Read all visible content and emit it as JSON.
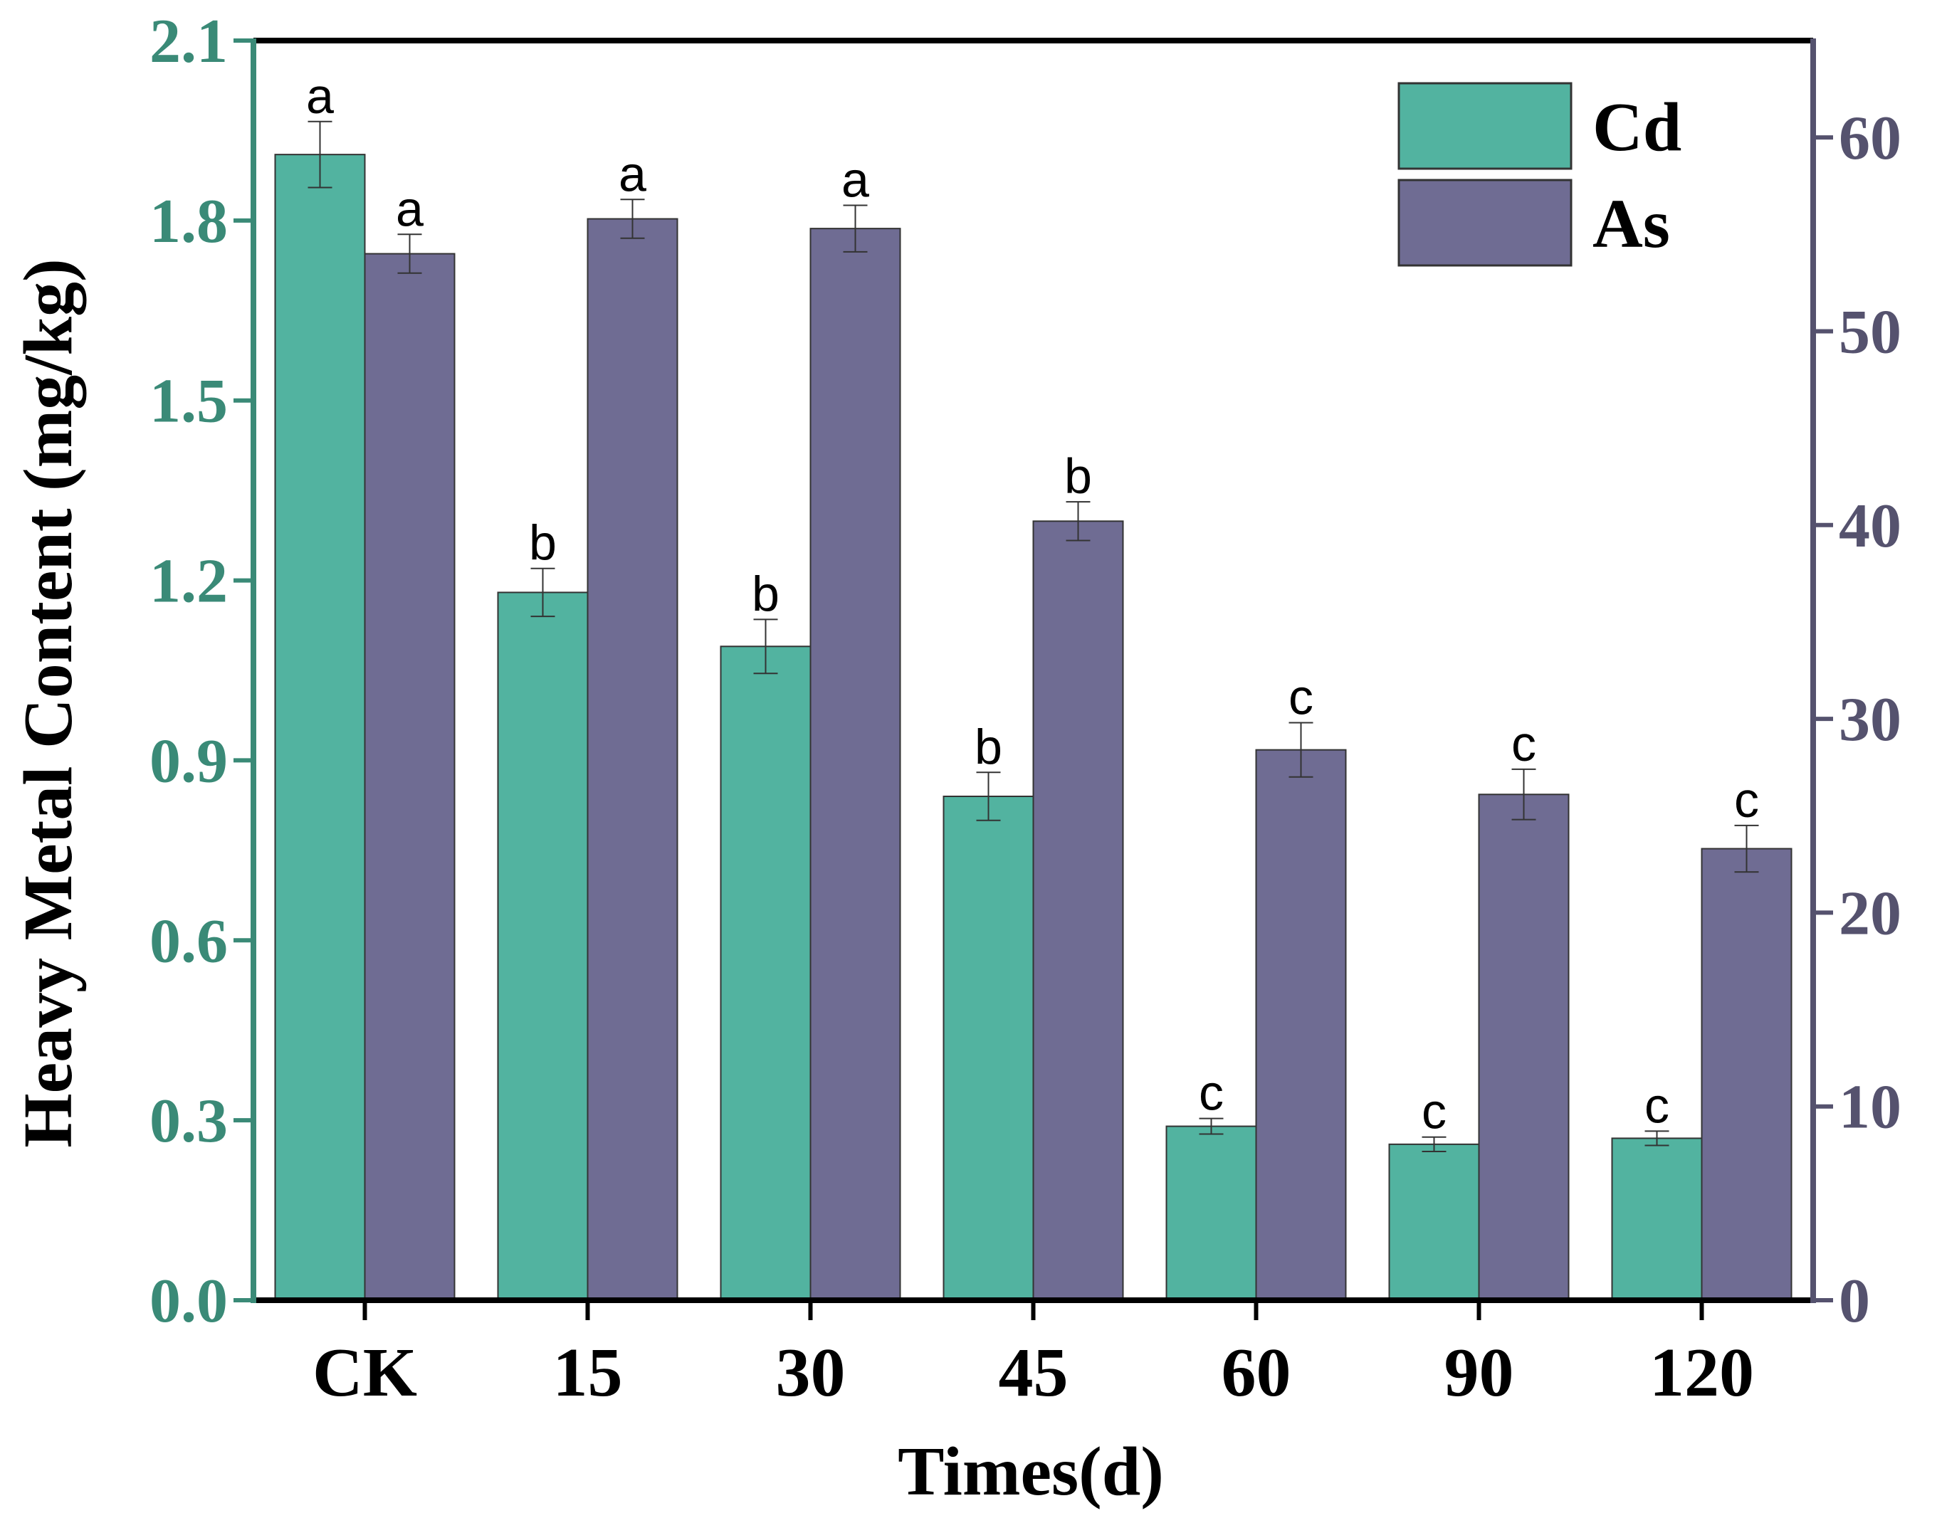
{
  "chart_data": {
    "type": "bar",
    "title": "",
    "xlabel": "Times(d)",
    "ylabel": "Heavy Metal Content (mg/kg)",
    "categories": [
      "CK",
      "15",
      "30",
      "45",
      "60",
      "90",
      "120"
    ],
    "left_axis": {
      "ylim": [
        0,
        2.1
      ],
      "ticks": [
        "0.0",
        "0.3",
        "0.6",
        "0.9",
        "1.2",
        "1.5",
        "1.8",
        "2.1"
      ],
      "color": "#3a8a77"
    },
    "right_axis": {
      "ylim": [
        0,
        65
      ],
      "ticks": [
        "0",
        "10",
        "20",
        "30",
        "40",
        "50",
        "60"
      ],
      "color": "#55526e"
    },
    "series": [
      {
        "name": "Cd",
        "axis": "left",
        "color": "#52b3a0",
        "values": [
          1.91,
          1.18,
          1.09,
          0.84,
          0.29,
          0.26,
          0.27
        ],
        "errors": [
          0.055,
          0.04,
          0.045,
          0.04,
          0.013,
          0.012,
          0.012
        ],
        "labels": [
          "a",
          "b",
          "b",
          "b",
          "c",
          "c",
          "c"
        ]
      },
      {
        "name": "As",
        "axis": "right",
        "color": "#6f6c93",
        "values": [
          54.0,
          55.8,
          55.3,
          40.2,
          28.4,
          26.1,
          23.3
        ],
        "errors": [
          1.0,
          1.0,
          1.2,
          1.0,
          1.4,
          1.3,
          1.2
        ],
        "labels": [
          "a",
          "a",
          "a",
          "b",
          "c",
          "c",
          "c"
        ]
      }
    ],
    "legend": {
      "position": "top-right",
      "entries": [
        "Cd",
        "As"
      ]
    },
    "grid": false
  }
}
